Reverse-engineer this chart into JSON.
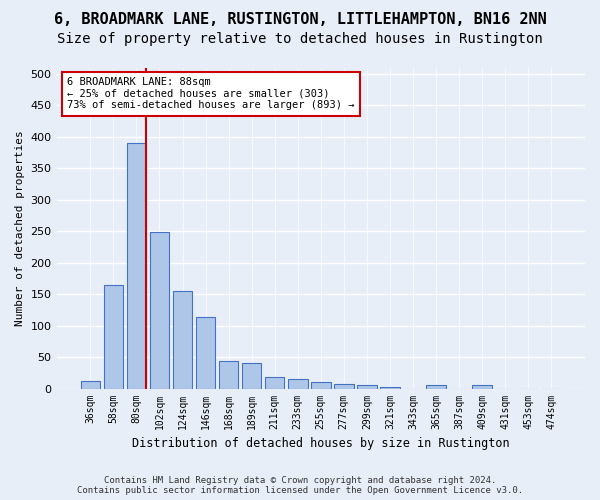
{
  "title": "6, BROADMARK LANE, RUSTINGTON, LITTLEHAMPTON, BN16 2NN",
  "subtitle": "Size of property relative to detached houses in Rustington",
  "xlabel": "Distribution of detached houses by size in Rustington",
  "ylabel": "Number of detached properties",
  "bar_values": [
    12,
    165,
    390,
    248,
    155,
    113,
    43,
    40,
    18,
    15,
    10,
    7,
    5,
    3,
    0,
    5,
    0,
    5,
    0,
    0,
    0
  ],
  "bar_labels": [
    "36sqm",
    "58sqm",
    "80sqm",
    "102sqm",
    "124sqm",
    "146sqm",
    "168sqm",
    "189sqm",
    "211sqm",
    "233sqm",
    "255sqm",
    "277sqm",
    "299sqm",
    "321sqm",
    "343sqm",
    "365sqm",
    "387sqm",
    "409sqm",
    "431sqm",
    "453sqm",
    "474sqm"
  ],
  "bar_color": "#aec6e8",
  "bar_edge_color": "#4472c4",
  "red_line_color": "#cc0000",
  "red_line_x": 2.425,
  "annotation_text": "6 BROADMARK LANE: 88sqm\n← 25% of detached houses are smaller (303)\n73% of semi-detached houses are larger (893) →",
  "annotation_box_color": "#ffffff",
  "annotation_box_edge": "#cc0000",
  "ylim": [
    0,
    510
  ],
  "yticks": [
    0,
    50,
    100,
    150,
    200,
    250,
    300,
    350,
    400,
    450,
    500
  ],
  "footer_text": "Contains HM Land Registry data © Crown copyright and database right 2024.\nContains public sector information licensed under the Open Government Licence v3.0.",
  "bg_color": "#e8eef8",
  "grid_color": "#ffffff",
  "title_fontsize": 11,
  "subtitle_fontsize": 10
}
